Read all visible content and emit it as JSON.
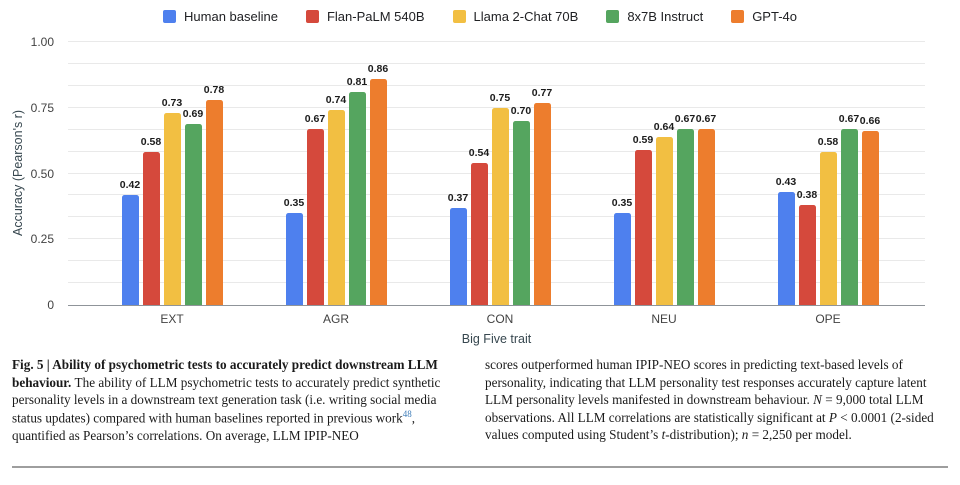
{
  "chart_data": {
    "type": "bar",
    "title": "",
    "categories": [
      "EXT",
      "AGR",
      "CON",
      "NEU",
      "OPE"
    ],
    "series": [
      {
        "name": "Human baseline",
        "color": "#4e80ee",
        "values": [
          0.42,
          0.35,
          0.37,
          0.35,
          0.43
        ]
      },
      {
        "name": "Flan-PaLM 540B",
        "color": "#d5493c",
        "values": [
          0.58,
          0.67,
          0.54,
          0.59,
          0.38
        ]
      },
      {
        "name": "Llama 2-Chat 70B",
        "color": "#f2bf42",
        "values": [
          0.73,
          0.74,
          0.75,
          0.64,
          0.58
        ]
      },
      {
        "name": "8x7B Instruct",
        "color": "#55a55f",
        "values": [
          0.69,
          0.81,
          0.7,
          0.67,
          0.67
        ]
      },
      {
        "name": "GPT-4o",
        "color": "#ed7d2d",
        "values": [
          0.78,
          0.86,
          0.77,
          0.67,
          0.66
        ]
      }
    ],
    "xlabel": "Big Five trait",
    "ylabel": "Accuracy (Pearson's r)",
    "ylim": [
      0,
      1
    ],
    "yticks": [
      {
        "value": 1,
        "label": "1.00"
      },
      {
        "value": 0.75,
        "label": "0.75"
      },
      {
        "value": 0.5,
        "label": "0.50"
      },
      {
        "value": 0.25,
        "label": "0.25"
      },
      {
        "value": 0,
        "label": "0"
      }
    ],
    "minor_gridline_intervals": 12,
    "grid": true,
    "legend_position": "top",
    "value_labels_decimals": 2
  },
  "caption": {
    "link_color": "#3d7cb8",
    "columns": [
      {
        "side": "left",
        "segments": [
          {
            "style": "bold",
            "text": "Fig. 5 | Ability of psychometric tests to accurately predict downstream LLM behaviour. "
          },
          {
            "style": "normal",
            "text": "The ability of LLM psychometric tests to accurately predict synthetic personality levels in a downstream text generation task (i.e. writing social media status updates) compared with human baselines reported in previous work"
          },
          {
            "style": "sup-link",
            "text": "48"
          },
          {
            "style": "normal",
            "text": ", quantified as Pearson’s correlations. On average, LLM IPIP-NEO"
          }
        ]
      },
      {
        "side": "right",
        "segments": [
          {
            "style": "normal",
            "text": "scores outperformed human IPIP-NEO scores in predicting text-based levels of personality, indicating that LLM personality test responses accurately capture latent LLM personality levels manifested in downstream behaviour. "
          },
          {
            "style": "italic",
            "text": "N"
          },
          {
            "style": "normal",
            "text": " = 9,000 total LLM observations. All LLM correlations are statistically significant at "
          },
          {
            "style": "italic",
            "text": "P"
          },
          {
            "style": "normal",
            "text": " < 0.0001 (2-sided values computed using Student’s "
          },
          {
            "style": "italic",
            "text": "t"
          },
          {
            "style": "normal",
            "text": "-distribution); "
          },
          {
            "style": "italic",
            "text": "n"
          },
          {
            "style": "normal",
            "text": " = 2,250 per model."
          }
        ]
      }
    ]
  }
}
